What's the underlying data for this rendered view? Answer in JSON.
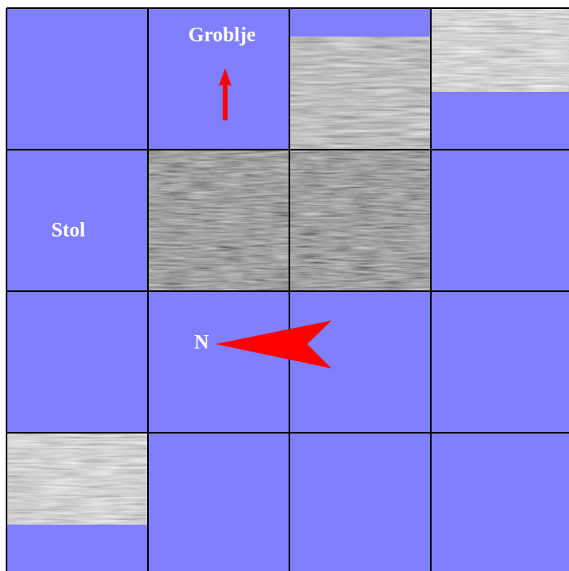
{
  "labels": {
    "cemetery": "Groblje",
    "place": "Stol",
    "north": "N"
  }
}
